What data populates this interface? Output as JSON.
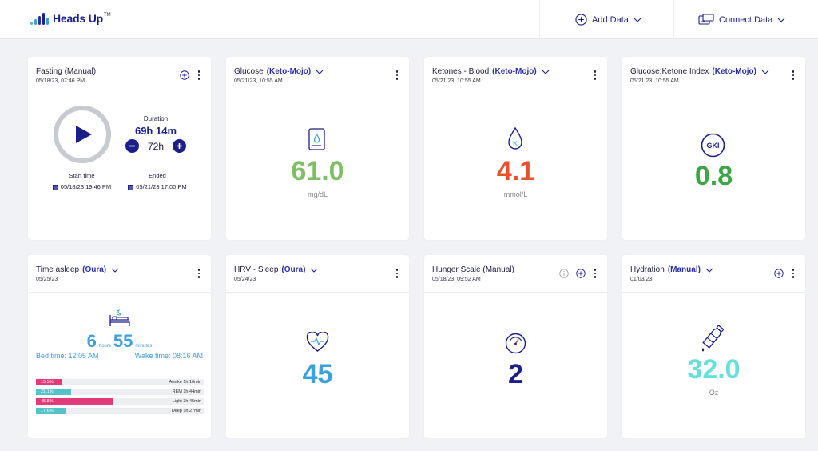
{
  "app": {
    "name": "Heads Up",
    "tm": "TM"
  },
  "topbar": {
    "add_data": "Add Data",
    "connect_data": "Connect Data"
  },
  "colors": {
    "brand": "#1b1f8a",
    "glucose": "#7dc063",
    "ketone": "#e8502a",
    "gki": "#3aa647",
    "sleep": "#3ba0dc",
    "hunger": "#1b1f8a",
    "hydration": "#67e0dc",
    "pink": "#e23b7a",
    "teal": "#55c3c9"
  },
  "fasting": {
    "title": "Fasting (Manual)",
    "date": "05/18/23, 07:46 PM",
    "duration_label": "Duration",
    "duration": "69h 14m",
    "goal": "72h",
    "start_label": "Start time",
    "start": "05/18/23 19:46 PM",
    "end_label": "Ended",
    "end": "05/21/23 17:00 PM"
  },
  "glucose": {
    "title": "Glucose",
    "source": "(Keto-Mojo)",
    "date": "05/21/23, 10:55 AM",
    "value": "61.0",
    "unit": "mg/dL"
  },
  "ketones": {
    "title": "Ketones - Blood",
    "source": "(Keto-Mojo)",
    "date": "05/21/23, 10:55 AM",
    "value": "4.1",
    "unit": "mmol/L",
    "icon_letter": "K"
  },
  "gki": {
    "title": "Glucose:Ketone Index",
    "source": "(Keto-Mojo)",
    "date": "05/21/23, 10:55 AM",
    "value": "0.8",
    "badge": "GKI"
  },
  "sleep": {
    "title": "Time asleep",
    "source": "(Oura)",
    "date": "05/25/23",
    "hours": "6",
    "hours_label": "hours",
    "minutes": "55",
    "minutes_label": "minutes",
    "bed": "Bed time: 12:05 AM",
    "wake": "Wake time: 08:16 AM",
    "stages": [
      {
        "pct_label": "15.5%",
        "fraction": 0.155,
        "label": "Awake 1h 16min",
        "color": "#e23b7a"
      },
      {
        "pct_label": "21.1%",
        "fraction": 0.211,
        "label": "REM 1h 44min",
        "color": "#55c3c9"
      },
      {
        "pct_label": "45.8%",
        "fraction": 0.458,
        "label": "Light 3h 45min",
        "color": "#e23b7a"
      },
      {
        "pct_label": "17.6%",
        "fraction": 0.176,
        "label": "Deep 1h 27min",
        "color": "#55c3c9"
      }
    ]
  },
  "hrv": {
    "title": "HRV - Sleep",
    "source": "(Oura)",
    "date": "05/24/23",
    "value": "45"
  },
  "hunger": {
    "title": "Hunger Scale (Manual)",
    "date": "05/18/23, 09:52 AM",
    "value": "2"
  },
  "hydration": {
    "title": "Hydration",
    "source": "(Manual)",
    "date": "01/03/23",
    "value": "32.0",
    "unit": "Oz"
  },
  "icons": [
    "logo-bars-icon",
    "plus-circle-icon",
    "connect-icon",
    "chevron-down-icon",
    "kebab-icon",
    "play-icon",
    "minus-icon",
    "plus-icon",
    "calendar-icon",
    "glucose-meter-icon",
    "drop-icon",
    "gki-icon",
    "bed-icon",
    "heart-icon",
    "gauge-icon",
    "bottle-icon",
    "info-icon"
  ]
}
